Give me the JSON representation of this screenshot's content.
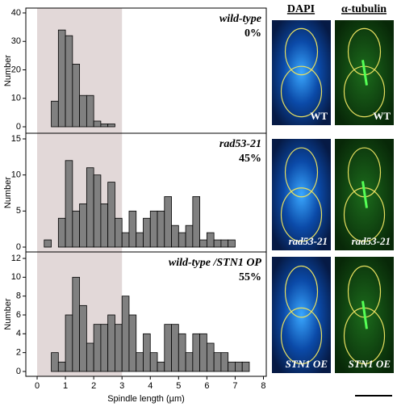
{
  "chart_data": [
    {
      "type": "histogram",
      "ylabel": "Number",
      "annotation": [
        "wild-type",
        "0%"
      ],
      "color": "#808080",
      "shade": [
        0,
        3
      ],
      "bins": [
        0.5,
        0.75,
        1,
        1.25,
        1.5,
        1.75,
        2,
        2.25,
        2.5,
        2.75
      ],
      "values": [
        9,
        34,
        32,
        22,
        11,
        11,
        2,
        1,
        1
      ],
      "xlim": [
        -0.4,
        8.1
      ],
      "ylim": [
        0,
        40
      ],
      "yticks": [
        0,
        10,
        20,
        30,
        40
      ]
    },
    {
      "type": "histogram",
      "ylabel": "Number",
      "annotation": [
        "rad53-21",
        "45%"
      ],
      "color": "#808080",
      "shade": [
        0,
        3
      ],
      "bins": [
        0.25,
        0.5,
        0.75,
        1,
        1.25,
        1.5,
        1.75,
        2,
        2.25,
        2.5,
        2.75,
        3,
        3.25,
        3.5,
        3.75,
        4,
        4.25,
        4.5,
        4.75,
        5,
        5.25,
        5.5,
        5.75,
        6,
        6.25,
        6.5,
        6.75,
        7
      ],
      "values": [
        1,
        0,
        4,
        12,
        5,
        6,
        11,
        10,
        6,
        9,
        4,
        2,
        5,
        2,
        4,
        5,
        5,
        7,
        3,
        2,
        3,
        7,
        1,
        2,
        1,
        1,
        1
      ],
      "xlim": [
        -0.4,
        8.1
      ],
      "ylim": [
        0,
        15
      ],
      "yticks": [
        0,
        5,
        10,
        15
      ]
    },
    {
      "type": "histogram",
      "ylabel": "Number",
      "xlabel": "Spindle length (µm)",
      "annotation": [
        "wild-type /STN1 OP",
        "55%"
      ],
      "color": "#808080",
      "shade": [
        0,
        3
      ],
      "bins": [
        0.5,
        0.75,
        1,
        1.25,
        1.5,
        1.75,
        2,
        2.25,
        2.5,
        2.75,
        3,
        3.25,
        3.5,
        3.75,
        4,
        4.25,
        4.5,
        4.75,
        5,
        5.25,
        5.5,
        5.75,
        6,
        6.25,
        6.5,
        6.75,
        7,
        7.25,
        7.5
      ],
      "values": [
        2,
        1,
        6,
        10,
        7,
        3,
        5,
        5,
        6,
        5,
        8,
        6,
        2,
        4,
        2,
        1,
        5,
        5,
        4,
        2,
        4,
        4,
        3,
        2,
        2,
        1,
        1,
        1
      ],
      "xlim": [
        -0.4,
        8.1
      ],
      "ylim": [
        0,
        12
      ],
      "yticks": [
        0,
        2,
        4,
        6,
        8,
        10,
        12
      ],
      "xticks": [
        0,
        1,
        2,
        3,
        4,
        5,
        6,
        7,
        8
      ]
    }
  ],
  "images": {
    "headers": [
      "DAPI",
      "α-tubulin"
    ],
    "labels": [
      [
        "WT",
        "WT"
      ],
      [
        "rad53-21",
        "rad53-21"
      ],
      [
        "STN1 OE",
        "STN1 OE"
      ]
    ]
  }
}
